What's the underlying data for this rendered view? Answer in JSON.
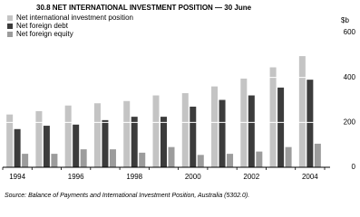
{
  "chart_data": {
    "type": "bar",
    "title": "30.8 NET INTERNATIONAL INVESTMENT POSITION — 30 June",
    "y_axis_label": "$b",
    "source": "Source: Balance of Payments and International Investment Position, Australia (5302.0).",
    "categories": [
      "1994",
      null,
      "1996",
      null,
      "1998",
      null,
      "2000",
      null,
      "2002",
      null,
      "2004"
    ],
    "series": [
      {
        "name": "Net international investment position",
        "color": "#c4c4c4",
        "values": [
          235,
          250,
          275,
          285,
          295,
          320,
          330,
          360,
          395,
          445,
          495
        ]
      },
      {
        "name": "Net foreign debt",
        "color": "#3c3c3c",
        "values": [
          170,
          185,
          190,
          210,
          225,
          225,
          270,
          300,
          320,
          355,
          390
        ]
      },
      {
        "name": "Net foreign equity",
        "color": "#9c9c9c",
        "values": [
          60,
          60,
          80,
          80,
          65,
          90,
          55,
          60,
          70,
          90,
          105
        ]
      }
    ],
    "ylim": [
      0,
      600
    ],
    "yticks": [
      0,
      200,
      400,
      600
    ],
    "grid": true,
    "legend": "upper left"
  }
}
